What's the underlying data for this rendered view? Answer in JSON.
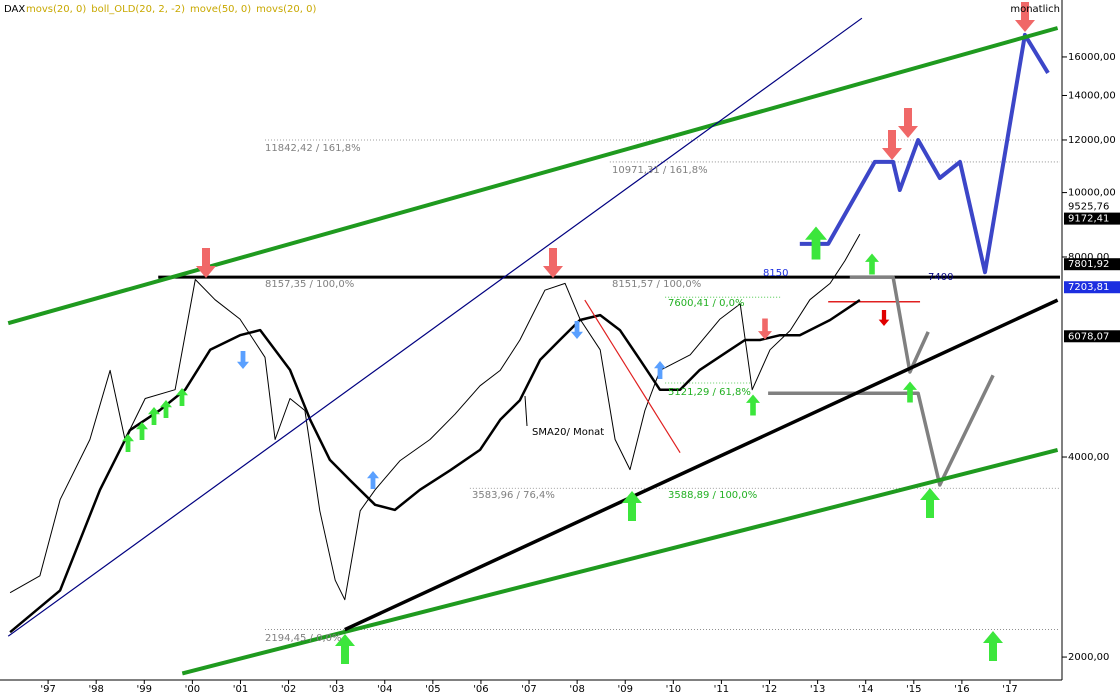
{
  "chart_data": {
    "type": "line",
    "title": "DAX",
    "indicators": [
      "movs(20, 0)",
      "boll_OLD(20, 2, -2)",
      "move(50, 0)",
      "movs(20, 0)"
    ],
    "period": "monatlich",
    "log": true,
    "xlim": [
      1996.0,
      2018.04
    ],
    "xticks": [
      {
        "value": 1997,
        "label": "'97"
      },
      {
        "value": 1998,
        "label": "'98"
      },
      {
        "value": 1999,
        "label": "'99"
      },
      {
        "value": 2000,
        "label": "'00"
      },
      {
        "value": 2001,
        "label": "'01"
      },
      {
        "value": 2002,
        "label": "'02"
      },
      {
        "value": 2003,
        "label": "'03"
      },
      {
        "value": 2004,
        "label": "'04"
      },
      {
        "value": 2005,
        "label": "'05"
      },
      {
        "value": 2006,
        "label": "'06"
      },
      {
        "value": 2007,
        "label": "'07"
      },
      {
        "value": 2008,
        "label": "'08"
      },
      {
        "value": 2009,
        "label": "'09"
      },
      {
        "value": 2010,
        "label": "'10"
      },
      {
        "value": 2011,
        "label": "'11"
      },
      {
        "value": 2012,
        "label": "'12"
      },
      {
        "value": 2013,
        "label": "'13"
      },
      {
        "value": 2014,
        "label": "'14"
      },
      {
        "value": 2015,
        "label": "'15"
      },
      {
        "value": 2016,
        "label": "'16"
      },
      {
        "value": 2017,
        "label": "'17"
      }
    ],
    "ylim": [
      1860,
      19490
    ],
    "yticks": [
      {
        "value": 2000,
        "label": "2000,00"
      },
      {
        "value": 4000,
        "label": "4000,00"
      },
      {
        "value": 8000,
        "label": "8000,00"
      },
      {
        "value": 10000,
        "label": "10000,00"
      },
      {
        "value": 12000,
        "label": "12000,00"
      },
      {
        "value": 14000,
        "label": "14000,00"
      },
      {
        "value": 16000,
        "label": "16000,00"
      }
    ],
    "series": [
      {
        "color": "#000000",
        "width": 1,
        "x": [
          1996.21,
          1996.83,
          1997.25,
          1997.87,
          1998.29,
          1998.6,
          1999.02,
          1999.64,
          2000.06,
          2000.47,
          2000.99,
          2001.51,
          2001.72,
          2002.03,
          2002.34,
          2002.65,
          2002.97,
          2003.17,
          2003.49,
          2003.8,
          2004.32,
          2004.94,
          2005.46,
          2005.98,
          2006.4,
          2006.81,
          2007.33,
          2007.75,
          2008.06,
          2008.48,
          2008.79,
          2009.1,
          2009.41,
          2009.72,
          2010.35,
          2010.97,
          2011.39,
          2011.64,
          2012.01,
          2012.43,
          2012.84,
          2013.26,
          2013.57,
          2013.88
        ],
        "values": [
          2500,
          2650,
          3450,
          4250,
          5400,
          4250,
          4900,
          5050,
          7400,
          6900,
          6450,
          5650,
          4250,
          4900,
          4700,
          3320,
          2610,
          2440,
          3320,
          3570,
          3950,
          4250,
          4640,
          5120,
          5400,
          6000,
          7130,
          7300,
          6450,
          5800,
          4250,
          3830,
          4700,
          5400,
          5700,
          6450,
          6800,
          5050,
          5800,
          6200,
          6900,
          7300,
          7900,
          8660
        ]
      },
      {
        "color": "#000000",
        "width": 2.5,
        "x": [
          1996.21,
          1997.25,
          1998.08,
          1998.7,
          1999.33,
          1999.85,
          2000.37,
          2000.99,
          2001.41,
          2002.03,
          2002.45,
          2002.86,
          2003.28,
          2003.8,
          2004.21,
          2004.73,
          2005.36,
          2005.98,
          2006.4,
          2006.81,
          2007.23,
          2007.64,
          2008.06,
          2008.48,
          2008.89,
          2009.31,
          2009.72,
          2010.14,
          2010.55,
          2011.18,
          2011.49,
          2011.8,
          2012.22,
          2012.63,
          2013.26,
          2013.88
        ],
        "values": [
          2180,
          2520,
          3570,
          4390,
          4710,
          5050,
          5800,
          6100,
          6210,
          5410,
          4550,
          3960,
          3690,
          3390,
          3330,
          3570,
          3820,
          4100,
          4550,
          4870,
          5600,
          6000,
          6430,
          6540,
          6210,
          5600,
          5050,
          5050,
          5410,
          5800,
          6000,
          6000,
          6100,
          6100,
          6430,
          6890
        ]
      },
      {
        "color": "#3c46c8",
        "width": 4,
        "x": [
          2012.63,
          2013.22,
          2014.19,
          2014.57,
          2014.71,
          2015.09,
          2015.54,
          2015.96,
          2016.48,
          2017.31,
          2017.79
        ],
        "values": [
          8370,
          8370,
          11120,
          11120,
          10090,
          12000,
          10520,
          11120,
          7590,
          17270,
          15140
        ]
      },
      {
        "color": "#808080",
        "width": 3.5,
        "x": [
          2013.67,
          2014.57,
          2014.92,
          2015.3
        ],
        "values": [
          7460,
          7460,
          5370,
          6170
        ]
      },
      {
        "color": "#808080",
        "width": 3.5,
        "x": [
          2011.97,
          2015.09,
          2015.54,
          2016.65
        ],
        "values": [
          4990,
          4990,
          3630,
          5310
        ]
      },
      {
        "color": "#1f9a1f",
        "width": 4,
        "x": [
          1996.17,
          2017.99
        ],
        "values": [
          6360,
          17690
        ]
      },
      {
        "color": "#1f9a1f",
        "width": 4,
        "x": [
          1999.79,
          2017.99
        ],
        "values": [
          1890,
          4100
        ]
      },
      {
        "color": "#000000",
        "width": 3.5,
        "x": [
          2003.17,
          2017.99
        ],
        "values": [
          2200,
          6890
        ]
      },
      {
        "color": "#000080",
        "width": 1.2,
        "x": [
          1996.17,
          2013.92
        ],
        "values": [
          2150,
          18300
        ]
      },
      {
        "color": "#e02020",
        "width": 1.2,
        "x": [
          2008.16,
          2010.14
        ],
        "values": [
          6890,
          4060
        ]
      }
    ],
    "levels": [
      {
        "value": 12000,
        "from": 2001.51,
        "to": 2018.04,
        "color": "#808080",
        "dash": true
      },
      {
        "value": 11120,
        "from": 2008.68,
        "to": 2018.04,
        "color": "#808080",
        "dash": true
      },
      {
        "value": 6960,
        "from": 2009.83,
        "to": 2012.22,
        "color": "#30c030",
        "dash": true
      },
      {
        "value": 5170,
        "from": 2009.83,
        "to": 2011.6,
        "color": "#30c030",
        "dash": true
      },
      {
        "value": 3590,
        "from": 2005.77,
        "to": 2018.04,
        "color": "#808080",
        "dash": true
      },
      {
        "value": 2200,
        "from": 2001.51,
        "to": 2018.04,
        "color": "#808080",
        "dash": true
      },
      {
        "value": 7460,
        "from": 1999.29,
        "to": 2018.04,
        "color": "#000000",
        "dash": false
      },
      {
        "value": 6850,
        "from": 2013.22,
        "to": 2015.13,
        "color": "#e02020",
        "dash": false
      }
    ],
    "price_labels": [
      {
        "value": 9525.76,
        "label": "9525,76",
        "bg": "#ffffff",
        "fg": "#000000"
      },
      {
        "value": 9172.41,
        "label": "9172,41",
        "bg": "#000000",
        "fg": "#ffffff"
      },
      {
        "value": 7801.92,
        "label": "7801,92",
        "bg": "#000000",
        "fg": "#ffffff"
      },
      {
        "value": 7203.81,
        "label": "7203,81",
        "bg": "#1c2ee0",
        "fg": "#ffffff"
      },
      {
        "value": 6078.07,
        "label": "6078,07",
        "bg": "#000000",
        "fg": "#ffffff"
      }
    ],
    "annotations": [
      "11842,42 / 161,8%",
      "10971,31 / 161,8%",
      "8157,35 / 100,0%",
      "8151,57 / 100,0%",
      "7600,41 / 0,0%",
      "5121,29 / 61,8%",
      "3583,96 / 76,4%",
      "3588,89 / 100,0%",
      "2194,45 / 0,0%",
      "SMA20/ Monat",
      "8150",
      "7400"
    ]
  }
}
